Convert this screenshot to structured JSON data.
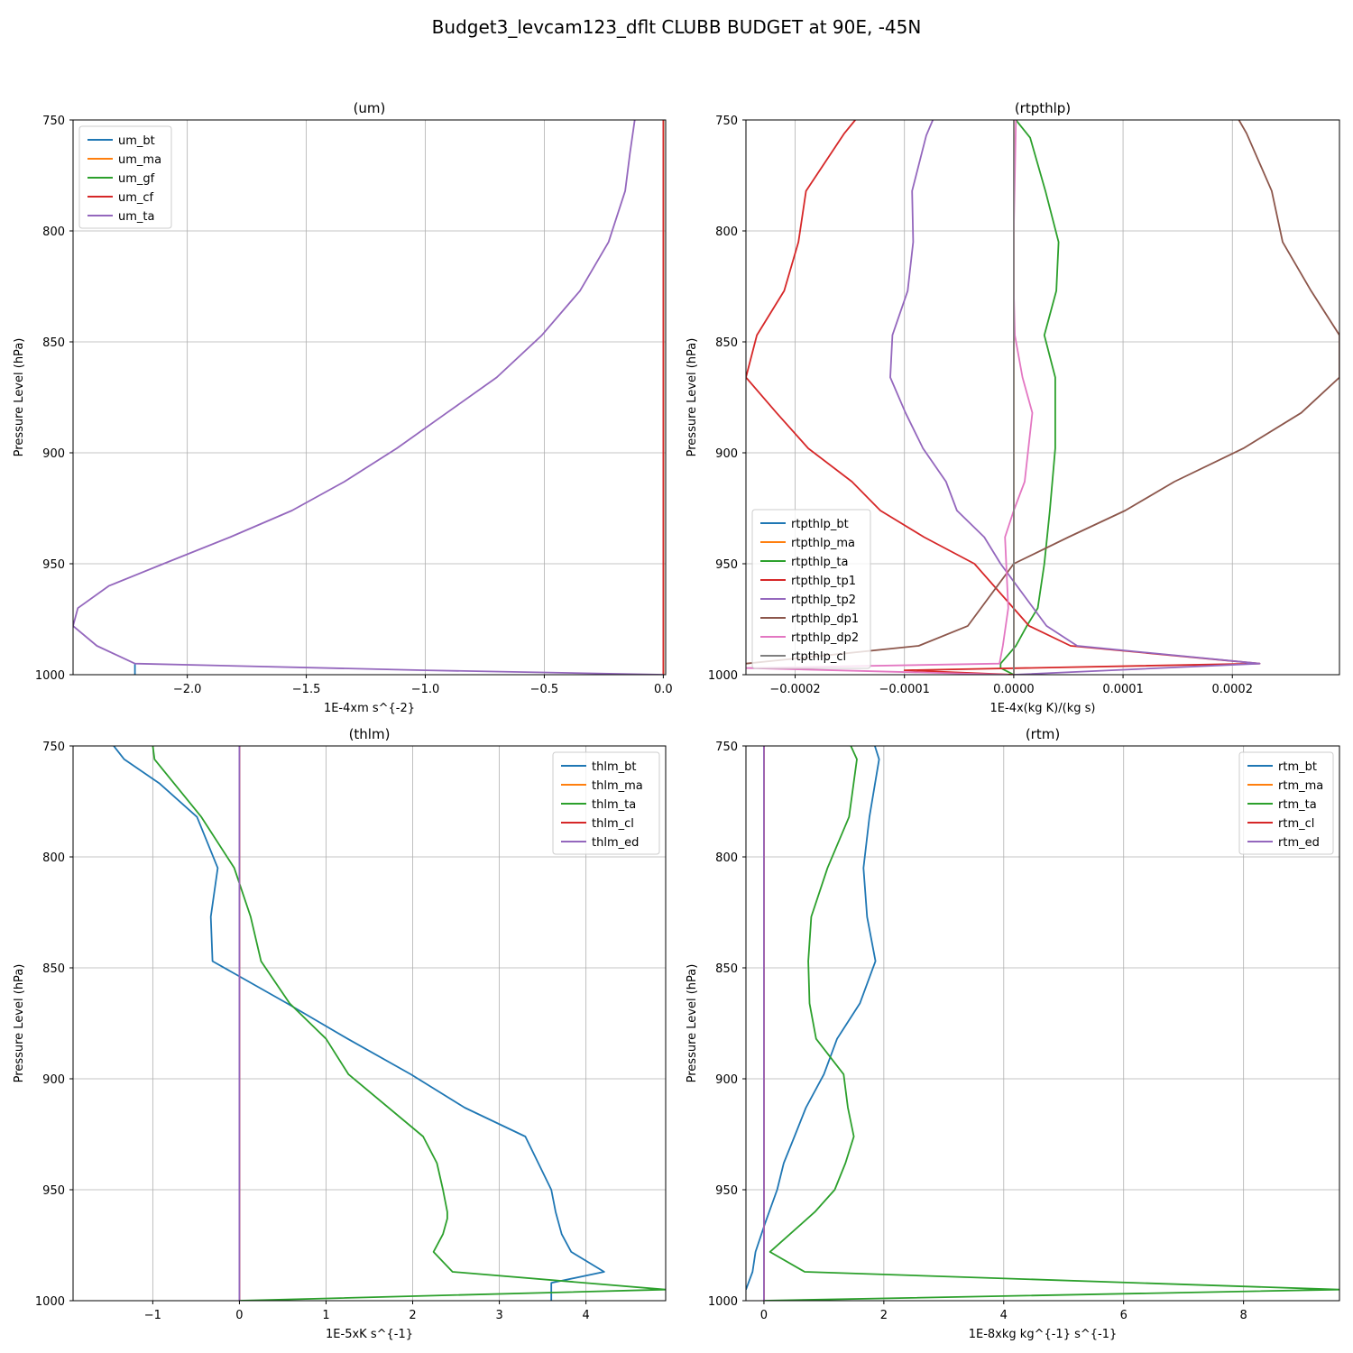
{
  "figure": {
    "title": "Budget3_levcam123_dflt CLUBB BUDGET at 90E, -45N"
  },
  "chart_data": [
    {
      "type": "line",
      "title": "(um)",
      "xlabel": "1E-4xm s^{-2}",
      "ylabel": "Pressure Level (hPa)",
      "xlim": [
        -2.48,
        0.01
      ],
      "ylim": [
        1000,
        750
      ],
      "grid": true,
      "legend_loc": "upper left",
      "xticks": [
        -2.0,
        -1.5,
        -1.0,
        -0.5,
        0.0
      ],
      "xtick_labels": [
        "−2.0",
        "−1.5",
        "−1.0",
        "−0.5",
        "0.0"
      ],
      "yticks": [
        750,
        800,
        850,
        900,
        950,
        1000
      ],
      "series": [
        {
          "name": "um_bt",
          "color": "#1f77b4",
          "x": [
            -2.22,
            -2.22
          ],
          "y": [
            1000,
            995
          ]
        },
        {
          "name": "um_ma",
          "color": "#ff7f0e",
          "x": [
            0,
            0
          ],
          "y": [
            750,
            1000
          ]
        },
        {
          "name": "um_gf",
          "color": "#2ca02c",
          "x": [
            0,
            0
          ],
          "y": [
            750,
            1000
          ]
        },
        {
          "name": "um_cf",
          "color": "#d62728",
          "x": [
            0,
            0
          ],
          "y": [
            750,
            1000
          ]
        },
        {
          "name": "um_ta",
          "color": "#9467bd",
          "x": [
            -0.12,
            -0.14,
            -0.16,
            -0.23,
            -0.35,
            -0.51,
            -0.7,
            -0.91,
            -1.12,
            -1.34,
            -1.56,
            -1.82,
            -2.1,
            -2.33,
            -2.46,
            -2.48,
            -2.38,
            -2.22,
            -1.0,
            0.0
          ],
          "y": [
            750,
            765,
            782,
            805,
            827,
            847,
            866,
            882,
            898,
            913,
            926,
            938,
            950,
            960,
            970,
            978,
            987,
            995,
            998,
            1000
          ]
        }
      ]
    },
    {
      "type": "line",
      "title": "(rtpthlp)",
      "xlabel": "1E-4x(kg K)/(kg s)",
      "ylabel": "Pressure Level (hPa)",
      "xlim": [
        -0.000245,
        0.000298
      ],
      "ylim": [
        1000,
        750
      ],
      "grid": true,
      "legend_loc": "lower left",
      "xticks": [
        -0.0002,
        -0.0001,
        0.0,
        0.0001,
        0.0002
      ],
      "xtick_labels": [
        "−0.0002",
        "−0.0001",
        "0.0000",
        "0.0001",
        "0.0002"
      ],
      "yticks": [
        750,
        800,
        850,
        900,
        950,
        1000
      ],
      "series": [
        {
          "name": "rtpthlp_bt",
          "color": "#1f77b4",
          "x": [
            0,
            0
          ],
          "y": [
            750,
            1000
          ]
        },
        {
          "name": "rtpthlp_ma",
          "color": "#ff7f0e",
          "x": [
            0,
            0
          ],
          "y": [
            750,
            1000
          ]
        },
        {
          "name": "rtpthlp_ta",
          "color": "#2ca02c",
          "x": [
            2e-06,
            1.5e-05,
            2.9e-05,
            4.1e-05,
            3.9e-05,
            2.8e-05,
            3.8e-05,
            3.8e-05,
            3.3e-05,
            2.8e-05,
            2.2e-05,
            1.2e-05,
            2e-06,
            -1.2e-05,
            -1.2e-05,
            0.0
          ],
          "y": [
            750,
            758,
            782,
            805,
            827,
            847,
            866,
            898,
            926,
            950,
            970,
            978,
            987,
            995,
            997,
            1000
          ]
        },
        {
          "name": "rtpthlp_tp1",
          "color": "#d62728",
          "x": [
            -0.000145,
            -0.000155,
            -0.00019,
            -0.000197,
            -0.00021,
            -0.000235,
            -0.000245,
            -0.000217,
            -0.000188,
            -0.000148,
            -0.000122,
            -8.2e-05,
            -3.6e-05,
            1.4e-05,
            5.2e-05,
            0.000225,
            -0.0001,
            0.0
          ],
          "y": [
            750,
            756,
            782,
            805,
            827,
            847,
            866,
            882,
            898,
            913,
            926,
            938,
            950,
            978,
            987,
            995,
            998,
            1000
          ]
        },
        {
          "name": "rtpthlp_tp2",
          "color": "#9467bd",
          "x": [
            -7.4e-05,
            -8e-05,
            -9.3e-05,
            -9.2e-05,
            -9.7e-05,
            -0.000111,
            -0.000113,
            -9.9e-05,
            -8.3e-05,
            -6.2e-05,
            -5.2e-05,
            -2.7e-05,
            -1.2e-05,
            3e-05,
            5.8e-05,
            0.000225,
            0.0
          ],
          "y": [
            750,
            757,
            782,
            805,
            827,
            847,
            866,
            882,
            898,
            913,
            926,
            938,
            950,
            978,
            987,
            995,
            1000
          ]
        },
        {
          "name": "rtpthlp_dp1",
          "color": "#8c564b",
          "x": [
            0.000206,
            0.000213,
            0.000236,
            0.000246,
            0.000272,
            0.000298,
            0.000298,
            0.000263,
            0.00021,
            0.000147,
            0.000102,
            5e-05,
            0.0,
            -4.2e-05,
            -8.7e-05,
            -0.000245
          ],
          "y": [
            750,
            756,
            782,
            805,
            827,
            847,
            866,
            882,
            898,
            913,
            926,
            938,
            950,
            978,
            987,
            995
          ]
        },
        {
          "name": "rtpthlp_dp2",
          "color": "#e377c2",
          "x": [
            2e-06,
            0.0,
            0.0,
            1e-06,
            8e-06,
            1.7e-05,
            1e-05,
            0.0,
            -8e-06,
            -5e-06,
            -1e-05,
            -1.3e-05,
            -0.000245,
            -5e-06
          ],
          "y": [
            750,
            800,
            827,
            847,
            866,
            882,
            913,
            926,
            938,
            970,
            987,
            995,
            997,
            1000
          ]
        },
        {
          "name": "rtpthlp_cl",
          "color": "#7f7f7f",
          "x": [
            0,
            0
          ],
          "y": [
            750,
            1000
          ]
        }
      ]
    },
    {
      "type": "line",
      "title": "(thlm)",
      "xlabel": "1E-5xK s^{-1}",
      "ylabel": "Pressure Level (hPa)",
      "xlim": [
        -1.92,
        4.92
      ],
      "ylim": [
        1000,
        750
      ],
      "grid": true,
      "legend_loc": "upper right",
      "xticks": [
        -1,
        0,
        1,
        2,
        3,
        4
      ],
      "xtick_labels": [
        "−1",
        "0",
        "1",
        "2",
        "3",
        "4"
      ],
      "yticks": [
        750,
        800,
        850,
        900,
        950,
        1000
      ],
      "series": [
        {
          "name": "thlm_bt",
          "color": "#1f77b4",
          "x": [
            -1.45,
            -1.33,
            -0.92,
            -0.49,
            -0.25,
            -0.33,
            -0.31,
            0.55,
            1.25,
            1.98,
            2.6,
            3.3,
            3.45,
            3.6,
            3.65,
            3.72,
            3.83,
            4.21,
            3.6,
            3.6
          ],
          "y": [
            750,
            756,
            767,
            782,
            805,
            827,
            847,
            866,
            882,
            898,
            913,
            926,
            938,
            950,
            960,
            970,
            978,
            987,
            992,
            1000
          ]
        },
        {
          "name": "thlm_ma",
          "color": "#ff7f0e",
          "x": [
            0,
            0
          ],
          "y": [
            750,
            1000
          ]
        },
        {
          "name": "thlm_ta",
          "color": "#2ca02c",
          "x": [
            -1.0,
            -0.98,
            -0.44,
            -0.06,
            0.13,
            0.25,
            0.58,
            1.0,
            1.26,
            2.12,
            2.28,
            2.35,
            2.4,
            2.4,
            2.35,
            2.24,
            2.46,
            4.92,
            0.0
          ],
          "y": [
            750,
            756,
            782,
            805,
            827,
            847,
            866,
            882,
            898,
            926,
            938,
            950,
            960,
            963,
            970,
            978,
            987,
            995,
            1000
          ]
        },
        {
          "name": "thlm_cl",
          "color": "#d62728",
          "x": [
            0,
            0
          ],
          "y": [
            750,
            1000
          ]
        },
        {
          "name": "thlm_ed",
          "color": "#9467bd",
          "x": [
            0,
            0
          ],
          "y": [
            750,
            1000
          ]
        }
      ]
    },
    {
      "type": "line",
      "title": "(rtm)",
      "xlabel": "1E-8xkg kg^{-1} s^{-1}",
      "ylabel": "Pressure Level (hPa)",
      "xlim": [
        -0.3,
        9.6
      ],
      "ylim": [
        1000,
        750
      ],
      "grid": true,
      "legend_loc": "upper right",
      "xticks": [
        0,
        2,
        4,
        6,
        8
      ],
      "xtick_labels": [
        "0",
        "2",
        "4",
        "6",
        "8"
      ],
      "yticks": [
        750,
        800,
        850,
        900,
        950,
        1000
      ],
      "series": [
        {
          "name": "rtm_bt",
          "color": "#1f77b4",
          "x": [
            1.85,
            1.92,
            1.76,
            1.66,
            1.72,
            1.86,
            1.6,
            1.22,
            1.0,
            0.7,
            0.51,
            0.33,
            0.22,
            0.02,
            -0.14,
            -0.19,
            -0.3
          ],
          "y": [
            750,
            756,
            782,
            805,
            827,
            847,
            866,
            882,
            898,
            913,
            926,
            938,
            950,
            965,
            978,
            987,
            995
          ]
        },
        {
          "name": "rtm_ma",
          "color": "#ff7f0e",
          "x": [
            0,
            0
          ],
          "y": [
            750,
            1000
          ]
        },
        {
          "name": "rtm_ta",
          "color": "#2ca02c",
          "x": [
            1.45,
            1.55,
            1.42,
            1.06,
            0.79,
            0.74,
            0.76,
            0.87,
            1.33,
            1.4,
            1.5,
            1.36,
            1.18,
            0.85,
            0.1,
            0.68,
            9.6,
            0.0
          ],
          "y": [
            750,
            756,
            782,
            805,
            827,
            847,
            866,
            882,
            898,
            913,
            926,
            938,
            950,
            960,
            978,
            987,
            995,
            1000
          ]
        },
        {
          "name": "rtm_cl",
          "color": "#d62728",
          "x": [
            0,
            0
          ],
          "y": [
            750,
            1000
          ]
        },
        {
          "name": "rtm_ed",
          "color": "#9467bd",
          "x": [
            0,
            0
          ],
          "y": [
            750,
            1000
          ]
        }
      ]
    }
  ]
}
